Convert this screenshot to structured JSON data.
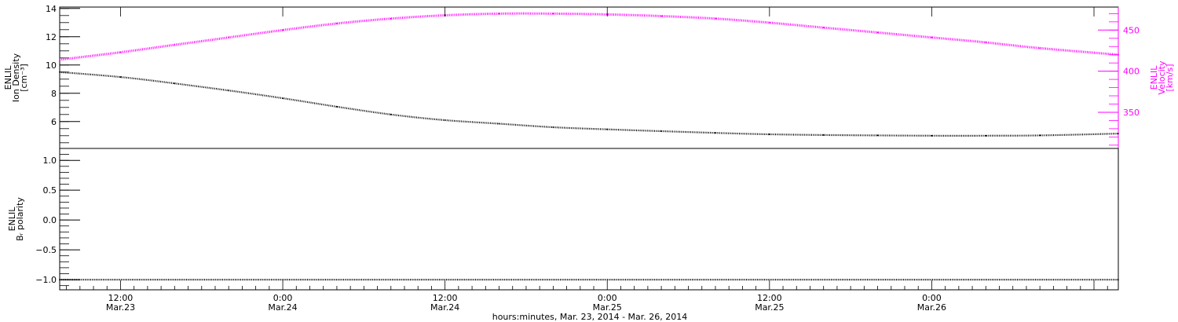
{
  "chart_data": {
    "type": "line",
    "xlabel": "hours:minutes, Mar. 23, 2014 - Mar. 26, 2014",
    "x_range_hours": [
      -16.5,
      61.8
    ],
    "x_ticks": [
      {
        "hour": -12,
        "time": "12:00",
        "date": "Mar.23"
      },
      {
        "hour": 0,
        "time": "0:00",
        "date": "Mar.24"
      },
      {
        "hour": 12,
        "time": "12:00",
        "date": "Mar.24"
      },
      {
        "hour": 24,
        "time": "0:00",
        "date": "Mar.25"
      },
      {
        "hour": 36,
        "time": "12:00",
        "date": "Mar.25"
      },
      {
        "hour": 48,
        "time": "0:00",
        "date": "Mar.26"
      }
    ],
    "panels": [
      {
        "name": "density-velocity",
        "left_axis": {
          "label_lines": [
            "ENLIL",
            "Ion Density",
            "[cm⁻³]"
          ],
          "ylim": [
            4.1,
            14.1
          ],
          "ticks": [
            6,
            8,
            10,
            12,
            14
          ],
          "color": "#000000"
        },
        "right_axis": {
          "label_lines": [
            "ENLIL",
            "Velocity",
            "[km/s]"
          ],
          "ylim": [
            306,
            478
          ],
          "ticks": [
            350,
            400,
            450
          ],
          "color": "#ff00ff"
        },
        "series": [
          {
            "axis": "left",
            "color": "#000000",
            "x": [
              -16.5,
              -12,
              -8,
              -4,
              0,
              4,
              8,
              12,
              16,
              20,
              24,
              28,
              32,
              36,
              40,
              44,
              48,
              52,
              56,
              61.8
            ],
            "y": [
              9.5,
              9.15,
              8.7,
              8.2,
              7.65,
              7.05,
              6.5,
              6.1,
              5.85,
              5.6,
              5.45,
              5.32,
              5.2,
              5.1,
              5.05,
              5.02,
              5.0,
              5.0,
              5.02,
              5.15
            ]
          },
          {
            "axis": "right",
            "color": "#ff00ff",
            "x": [
              -16.5,
              -12,
              -8,
              -4,
              0,
              4,
              8,
              12,
              16,
              20,
              24,
              28,
              32,
              36,
              40,
              44,
              48,
              52,
              56,
              61.8
            ],
            "y": [
              414,
              423,
              432,
              441,
              450,
              458,
              464,
              468,
              470,
              470,
              469,
              467,
              464,
              459,
              453,
              447,
              441,
              435,
              428,
              420
            ]
          }
        ]
      },
      {
        "name": "br-polarity",
        "left_axis": {
          "label_lines": [
            "ENLIL",
            "Bᵣ polarity"
          ],
          "ylim": [
            -1.17,
            1.2
          ],
          "ticks": [
            -1.0,
            -0.5,
            0.0,
            0.5,
            1.0
          ],
          "tick_labels": [
            "−1.0",
            "−0.5",
            "0.0",
            "0.5",
            "1.0"
          ],
          "color": "#000000"
        },
        "series": [
          {
            "axis": "left",
            "color": "#000000",
            "x": [
              -16.5,
              61.8
            ],
            "y": [
              -1.0,
              -1.0
            ]
          }
        ]
      }
    ]
  }
}
